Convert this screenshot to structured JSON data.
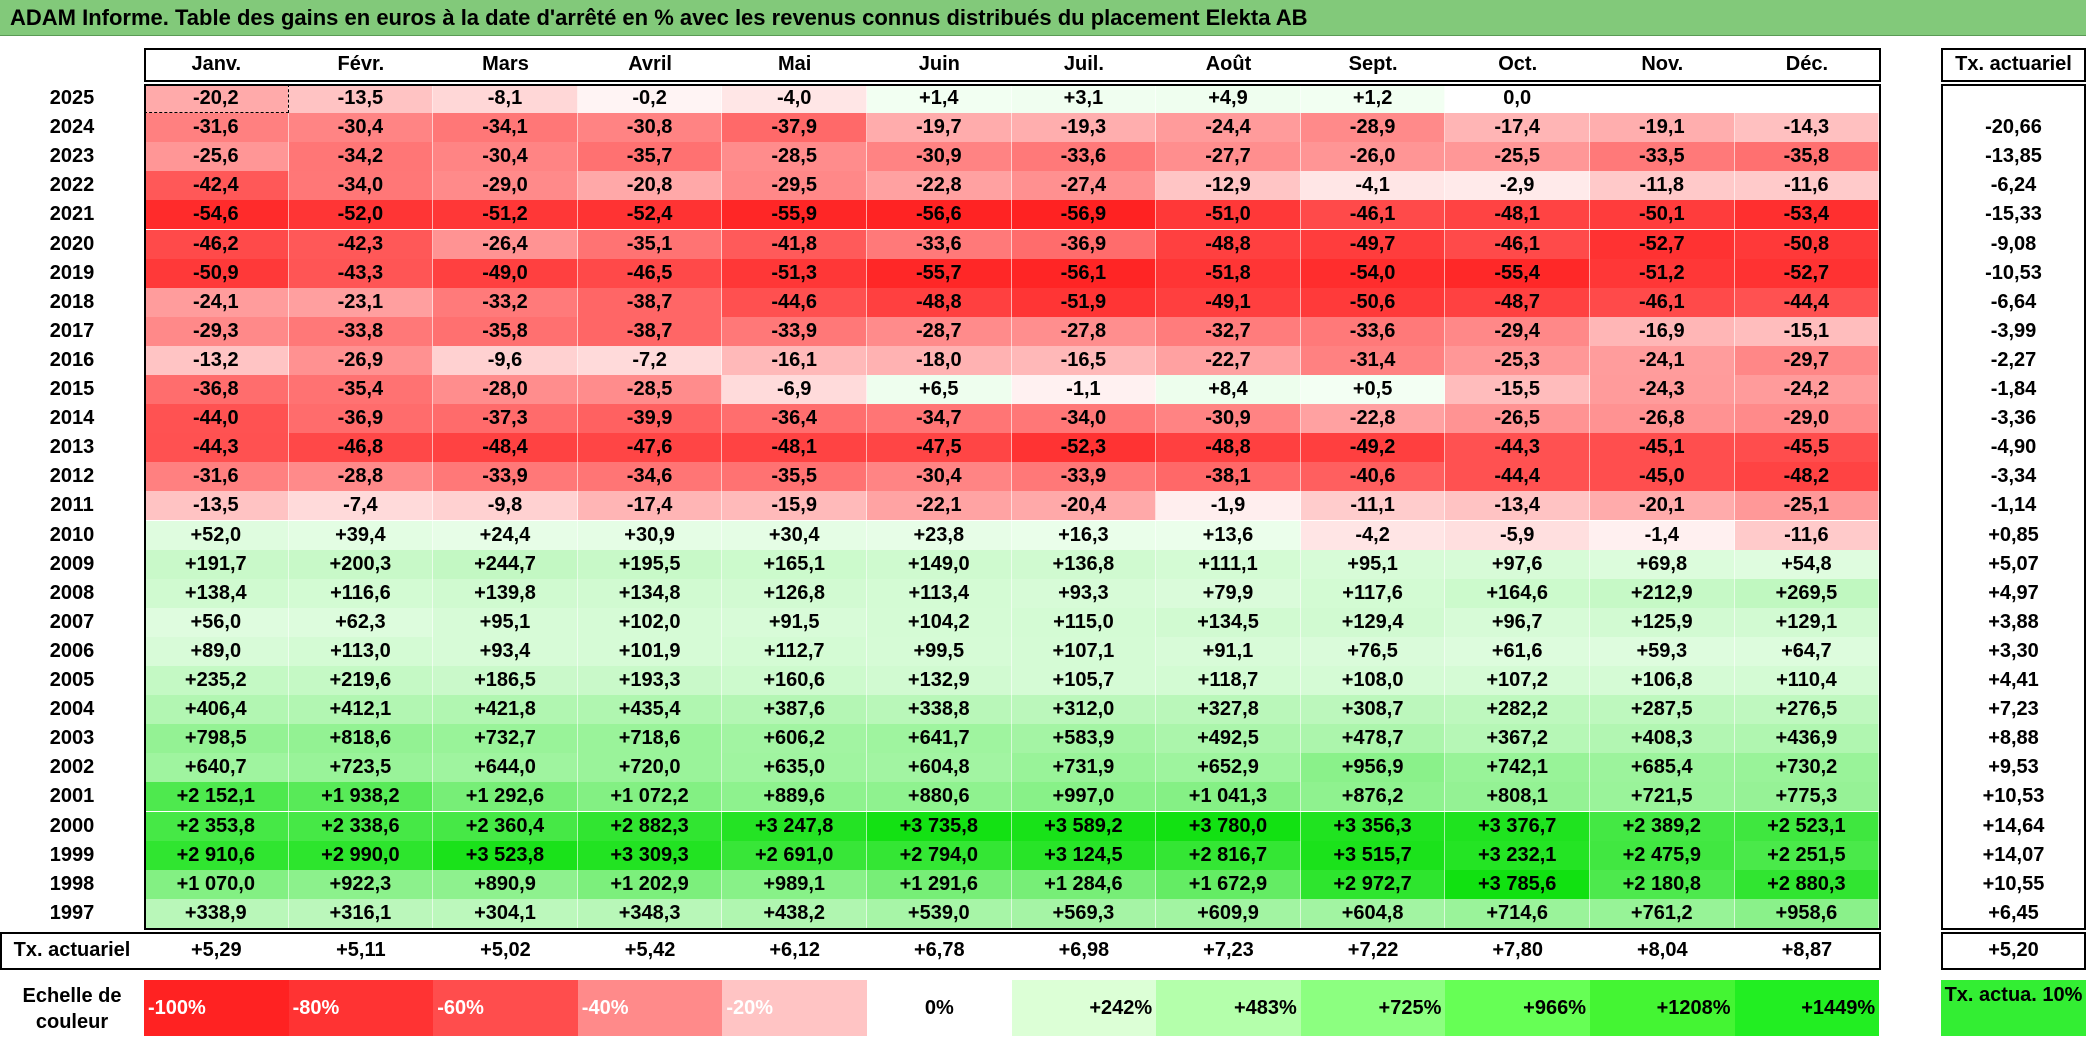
{
  "title": "ADAM Informe. Table des gains en euros à la date d'arrêté en % avec les revenus connus distribués du placement Elekta AB",
  "months": [
    "Janv.",
    "Févr.",
    "Mars",
    "Avril",
    "Mai",
    "Juin",
    "Juil.",
    "Août",
    "Sept.",
    "Oct.",
    "Nov.",
    "Déc."
  ],
  "tx_header": "Tx. actuariel",
  "rows": [
    {
      "year": "2025",
      "vals": [
        "-20,2",
        "-13,5",
        "-8,1",
        "-0,2",
        "-4,0",
        "+1,4",
        "+3,1",
        "+4,9",
        "+1,2",
        "0,0",
        "",
        ""
      ],
      "tx": ""
    },
    {
      "year": "2024",
      "vals": [
        "-31,6",
        "-30,4",
        "-34,1",
        "-30,8",
        "-37,9",
        "-19,7",
        "-19,3",
        "-24,4",
        "-28,9",
        "-17,4",
        "-19,1",
        "-14,3"
      ],
      "tx": "-20,66"
    },
    {
      "year": "2023",
      "vals": [
        "-25,6",
        "-34,2",
        "-30,4",
        "-35,7",
        "-28,5",
        "-30,9",
        "-33,6",
        "-27,7",
        "-26,0",
        "-25,5",
        "-33,5",
        "-35,8"
      ],
      "tx": "-13,85"
    },
    {
      "year": "2022",
      "vals": [
        "-42,4",
        "-34,0",
        "-29,0",
        "-20,8",
        "-29,5",
        "-22,8",
        "-27,4",
        "-12,9",
        "-4,1",
        "-2,9",
        "-11,8",
        "-11,6"
      ],
      "tx": "-6,24"
    },
    {
      "year": "2021",
      "vals": [
        "-54,6",
        "-52,0",
        "-51,2",
        "-52,4",
        "-55,9",
        "-56,6",
        "-56,9",
        "-51,0",
        "-46,1",
        "-48,1",
        "-50,1",
        "-53,4"
      ],
      "tx": "-15,33"
    },
    {
      "year": "2020",
      "vals": [
        "-46,2",
        "-42,3",
        "-26,4",
        "-35,1",
        "-41,8",
        "-33,6",
        "-36,9",
        "-48,8",
        "-49,7",
        "-46,1",
        "-52,7",
        "-50,8"
      ],
      "tx": "-9,08"
    },
    {
      "year": "2019",
      "vals": [
        "-50,9",
        "-43,3",
        "-49,0",
        "-46,5",
        "-51,3",
        "-55,7",
        "-56,1",
        "-51,8",
        "-54,0",
        "-55,4",
        "-51,2",
        "-52,7"
      ],
      "tx": "-10,53"
    },
    {
      "year": "2018",
      "vals": [
        "-24,1",
        "-23,1",
        "-33,2",
        "-38,7",
        "-44,6",
        "-48,8",
        "-51,9",
        "-49,1",
        "-50,6",
        "-48,7",
        "-46,1",
        "-44,4"
      ],
      "tx": "-6,64"
    },
    {
      "year": "2017",
      "vals": [
        "-29,3",
        "-33,8",
        "-35,8",
        "-38,7",
        "-33,9",
        "-28,7",
        "-27,8",
        "-32,7",
        "-33,6",
        "-29,4",
        "-16,9",
        "-15,1"
      ],
      "tx": "-3,99"
    },
    {
      "year": "2016",
      "vals": [
        "-13,2",
        "-26,9",
        "-9,6",
        "-7,2",
        "-16,1",
        "-18,0",
        "-16,5",
        "-22,7",
        "-31,4",
        "-25,3",
        "-24,1",
        "-29,7"
      ],
      "tx": "-2,27"
    },
    {
      "year": "2015",
      "vals": [
        "-36,8",
        "-35,4",
        "-28,0",
        "-28,5",
        "-6,9",
        "+6,5",
        "-1,1",
        "+8,4",
        "+0,5",
        "-15,5",
        "-24,3",
        "-24,2"
      ],
      "tx": "-1,84"
    },
    {
      "year": "2014",
      "vals": [
        "-44,0",
        "-36,9",
        "-37,3",
        "-39,9",
        "-36,4",
        "-34,7",
        "-34,0",
        "-30,9",
        "-22,8",
        "-26,5",
        "-26,8",
        "-29,0"
      ],
      "tx": "-3,36"
    },
    {
      "year": "2013",
      "vals": [
        "-44,3",
        "-46,8",
        "-48,4",
        "-47,6",
        "-48,1",
        "-47,5",
        "-52,3",
        "-48,8",
        "-49,2",
        "-44,3",
        "-45,1",
        "-45,5"
      ],
      "tx": "-4,90"
    },
    {
      "year": "2012",
      "vals": [
        "-31,6",
        "-28,8",
        "-33,9",
        "-34,6",
        "-35,5",
        "-30,4",
        "-33,9",
        "-38,1",
        "-40,6",
        "-44,4",
        "-45,0",
        "-48,2"
      ],
      "tx": "-3,34"
    },
    {
      "year": "2011",
      "vals": [
        "-13,5",
        "-7,4",
        "-9,8",
        "-17,4",
        "-15,9",
        "-22,1",
        "-20,4",
        "-1,9",
        "-11,1",
        "-13,4",
        "-20,1",
        "-25,1"
      ],
      "tx": "-1,14"
    },
    {
      "year": "2010",
      "vals": [
        "+52,0",
        "+39,4",
        "+24,4",
        "+30,9",
        "+30,4",
        "+23,8",
        "+16,3",
        "+13,6",
        "-4,2",
        "-5,9",
        "-1,4",
        "-11,6"
      ],
      "tx": "+0,85"
    },
    {
      "year": "2009",
      "vals": [
        "+191,7",
        "+200,3",
        "+244,7",
        "+195,5",
        "+165,1",
        "+149,0",
        "+136,8",
        "+111,1",
        "+95,1",
        "+97,6",
        "+69,8",
        "+54,8"
      ],
      "tx": "+5,07"
    },
    {
      "year": "2008",
      "vals": [
        "+138,4",
        "+116,6",
        "+139,8",
        "+134,8",
        "+126,8",
        "+113,4",
        "+93,3",
        "+79,9",
        "+117,6",
        "+164,6",
        "+212,9",
        "+269,5"
      ],
      "tx": "+4,97"
    },
    {
      "year": "2007",
      "vals": [
        "+56,0",
        "+62,3",
        "+95,1",
        "+102,0",
        "+91,5",
        "+104,2",
        "+115,0",
        "+134,5",
        "+129,4",
        "+96,7",
        "+125,9",
        "+129,1"
      ],
      "tx": "+3,88"
    },
    {
      "year": "2006",
      "vals": [
        "+89,0",
        "+113,0",
        "+93,4",
        "+101,9",
        "+112,7",
        "+99,5",
        "+107,1",
        "+91,1",
        "+76,5",
        "+61,6",
        "+59,3",
        "+64,7"
      ],
      "tx": "+3,30"
    },
    {
      "year": "2005",
      "vals": [
        "+235,2",
        "+219,6",
        "+186,5",
        "+193,3",
        "+160,6",
        "+132,9",
        "+105,7",
        "+118,7",
        "+108,0",
        "+107,2",
        "+106,8",
        "+110,4"
      ],
      "tx": "+4,41"
    },
    {
      "year": "2004",
      "vals": [
        "+406,4",
        "+412,1",
        "+421,8",
        "+435,4",
        "+387,6",
        "+338,8",
        "+312,0",
        "+327,8",
        "+308,7",
        "+282,2",
        "+287,5",
        "+276,5"
      ],
      "tx": "+7,23"
    },
    {
      "year": "2003",
      "vals": [
        "+798,5",
        "+818,6",
        "+732,7",
        "+718,6",
        "+606,2",
        "+641,7",
        "+583,9",
        "+492,5",
        "+478,7",
        "+367,2",
        "+408,3",
        "+436,9"
      ],
      "tx": "+8,88"
    },
    {
      "year": "2002",
      "vals": [
        "+640,7",
        "+723,5",
        "+644,0",
        "+720,0",
        "+635,0",
        "+604,8",
        "+731,9",
        "+652,9",
        "+956,9",
        "+742,1",
        "+685,4",
        "+730,2"
      ],
      "tx": "+9,53"
    },
    {
      "year": "2001",
      "vals": [
        "+2 152,1",
        "+1 938,2",
        "+1 292,6",
        "+1 072,2",
        "+889,6",
        "+880,6",
        "+997,0",
        "+1 041,3",
        "+876,2",
        "+808,1",
        "+721,5",
        "+775,3"
      ],
      "tx": "+10,53"
    },
    {
      "year": "2000",
      "vals": [
        "+2 353,8",
        "+2 338,6",
        "+2 360,4",
        "+2 882,3",
        "+3 247,8",
        "+3 735,8",
        "+3 589,2",
        "+3 780,0",
        "+3 356,3",
        "+3 376,7",
        "+2 389,2",
        "+2 523,1"
      ],
      "tx": "+14,64"
    },
    {
      "year": "1999",
      "vals": [
        "+2 910,6",
        "+2 990,0",
        "+3 523,8",
        "+3 309,3",
        "+2 691,0",
        "+2 794,0",
        "+3 124,5",
        "+2 816,7",
        "+3 515,7",
        "+3 232,1",
        "+2 475,9",
        "+2 251,5"
      ],
      "tx": "+14,07"
    },
    {
      "year": "1998",
      "vals": [
        "+1 070,0",
        "+922,3",
        "+890,9",
        "+1 202,9",
        "+989,1",
        "+1 291,6",
        "+1 284,6",
        "+1 672,9",
        "+2 972,7",
        "+3 785,6",
        "+2 180,8",
        "+2 880,3"
      ],
      "tx": "+10,55"
    },
    {
      "year": "1997",
      "vals": [
        "+338,9",
        "+316,1",
        "+304,1",
        "+348,3",
        "+438,2",
        "+539,0",
        "+569,3",
        "+609,9",
        "+604,8",
        "+714,6",
        "+761,2",
        "+958,6"
      ],
      "tx": "+6,45"
    }
  ],
  "footer": {
    "label": "Tx. actuariel",
    "vals": [
      "+5,29",
      "+5,11",
      "+5,02",
      "+5,42",
      "+6,12",
      "+6,78",
      "+6,98",
      "+7,23",
      "+7,22",
      "+7,80",
      "+8,04",
      "+8,87"
    ],
    "tx": "+5,20"
  },
  "legend": {
    "label": "Echelle de couleur",
    "steps": [
      {
        "text": "-100%",
        "color": "#ff2222"
      },
      {
        "text": "-80%",
        "color": "#ff3333"
      },
      {
        "text": "-60%",
        "color": "#ff4d4d"
      },
      {
        "text": "-40%",
        "color": "#ff8a8a"
      },
      {
        "text": "-20%",
        "color": "#ffc4c4"
      },
      {
        "text": "0%",
        "color": "#ffffff"
      },
      {
        "text": "+242%",
        "color": "#dcffd6"
      },
      {
        "text": "+483%",
        "color": "#b4ffab"
      },
      {
        "text": "+725%",
        "color": "#8cff80"
      },
      {
        "text": "+966%",
        "color": "#66ff55"
      },
      {
        "text": "+1208%",
        "color": "#44f533"
      },
      {
        "text": "+1449%",
        "color": "#22ee22"
      }
    ],
    "tx_label": "Tx. actua. 10%"
  }
}
